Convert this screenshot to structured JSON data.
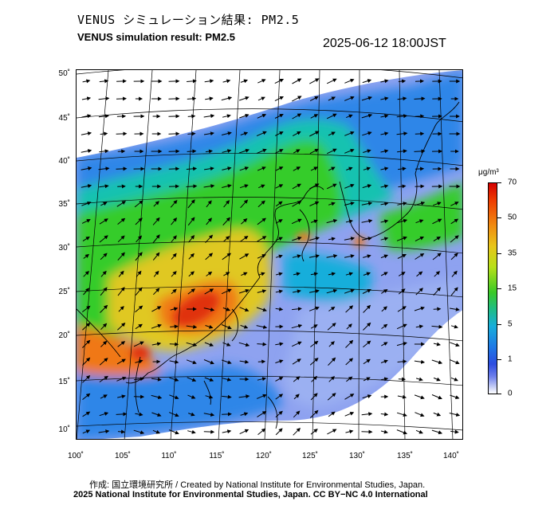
{
  "header": {
    "title_jp": "VENUS シミュレーション結果: PM2.5",
    "title_en": "VENUS simulation result: PM2.5",
    "timestamp": "2025-06-12 18:00JST"
  },
  "map": {
    "lat_labels": [
      "50˚",
      "45˚",
      "40˚",
      "35˚",
      "30˚",
      "25˚",
      "20˚",
      "15˚",
      "10˚"
    ],
    "lon_labels": [
      "100˚",
      "105˚",
      "110˚",
      "115˚",
      "120˚",
      "125˚",
      "130˚",
      "135˚",
      "140˚"
    ],
    "variable": "PM2.5",
    "wind_arrows": true,
    "field_colors": {
      "very_low": "#8ea2f0",
      "low": "#2f86e8",
      "moderate": "#18c2b0",
      "medium": "#34cc2c",
      "high": "#e0c820",
      "very_high": "#f07818",
      "extreme": "#e03010"
    }
  },
  "colorbar": {
    "unit": "μg/m³",
    "ticks": [
      "70",
      "50",
      "35",
      "15",
      "5",
      "1",
      "0"
    ]
  },
  "footer": {
    "credit_jp": "作成: 国立環境研究所 / Created by National Institute for Environmental Studies, Japan.",
    "credit_en": "2025 National Institute for Environmental Studies, Japan. CC BY−NC 4.0 International"
  }
}
